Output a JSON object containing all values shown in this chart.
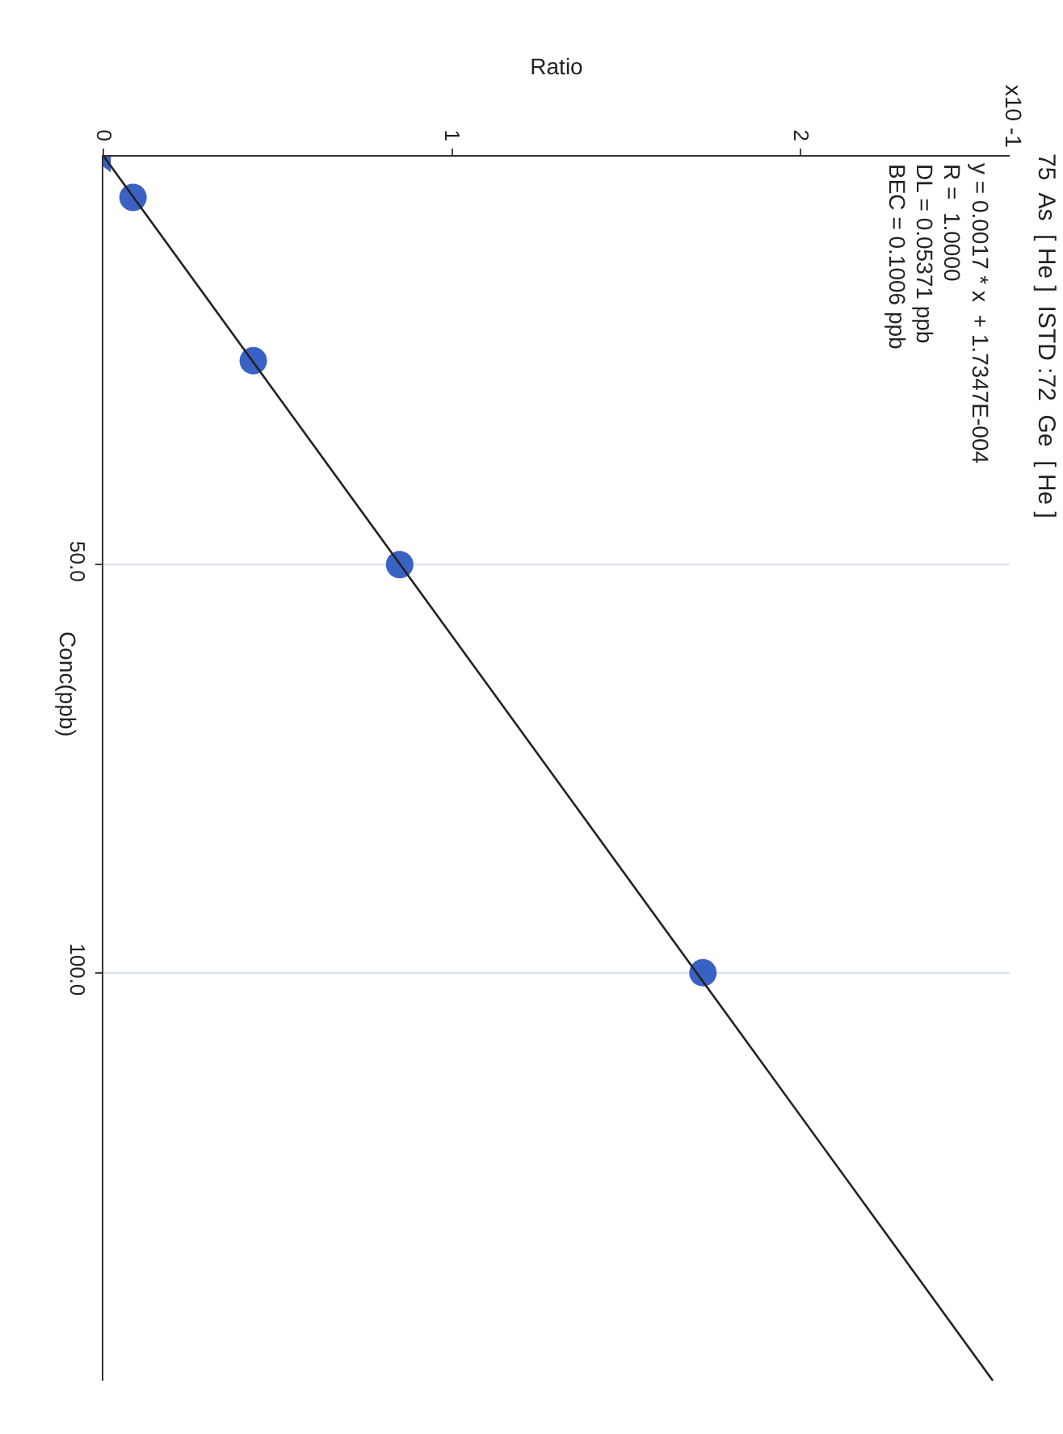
{
  "chart_data": {
    "type": "scatter",
    "title": "75  As  [ He ]  ISTD :72  Ge  [ He ]",
    "xlabel": "Ratio",
    "ylabel": "Conc(ppb)",
    "annotations": [
      "x10 -1",
      "y = 0.0017 * x  + 1.7347E-004",
      "R =  1.0000",
      "DL = 0.05371 ppb",
      "BEC = 0.1006 ppb"
    ],
    "series": [
      {
        "color": "#3a62c4",
        "marker": "triangle",
        "x": [
          0.0017
        ],
        "values": [
          0
        ]
      },
      {
        "color": "#3a62c4",
        "marker": "circle",
        "x": [
          0.085,
          0.43,
          0.85,
          1.72
        ],
        "values": [
          5,
          25,
          50,
          100
        ]
      },
      {
        "type": "line",
        "color": "#222222",
        "marker": "none",
        "x": [
          0.0017,
          2.5517
        ],
        "values": [
          0,
          150
        ]
      }
    ],
    "xlim": [
      0,
      2.6
    ],
    "xticks": [
      0,
      1,
      2
    ],
    "ylim": [
      150,
      0
    ],
    "yticks": [
      {
        "value": 50,
        "label": "50.0"
      },
      {
        "value": 100,
        "label": "100.0"
      }
    ],
    "grid": "y"
  }
}
